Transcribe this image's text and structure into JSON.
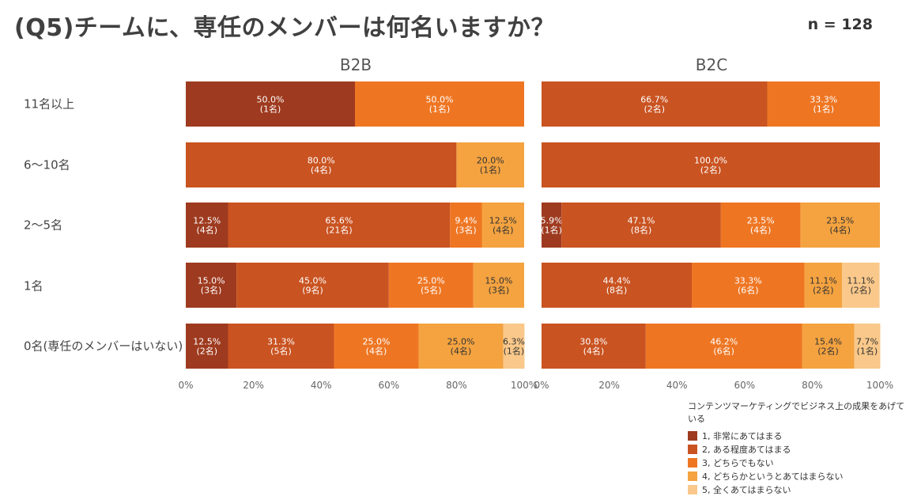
{
  "title": "(Q5)チームに、専任のメンバーは何名いますか？",
  "sample_size": "n = 128",
  "chart_data": {
    "type": "bar",
    "orientation": "horizontal-stacked-100",
    "categories": [
      "11名以上",
      "6～10名",
      "2～5名",
      "1名",
      "0名(専任のメンバーはいない)"
    ],
    "axis_ticks": [
      "0%",
      "20%",
      "40%",
      "60%",
      "80%",
      "100%"
    ],
    "xlim": [
      0,
      100
    ],
    "legend_title": "コンテンツマーケティングでビジネス上の成果をあげている",
    "legend": [
      {
        "label": "1, 非常にあてはまる",
        "color": "#9E3A1F"
      },
      {
        "label": "2, ある程度あてはまる",
        "color": "#C95321"
      },
      {
        "label": "3, どちらでもない",
        "color": "#EE7623"
      },
      {
        "label": "4, どちらかというとあてはまらない",
        "color": "#F4A340"
      },
      {
        "label": "5, 全くあてはまらない",
        "color": "#F9C88A"
      }
    ],
    "panels": [
      {
        "title": "B2B",
        "rows": [
          [
            {
              "level": 1,
              "pct": 50.0,
              "pct_label": "50.0%",
              "count_label": "(1名)"
            },
            {
              "level": 3,
              "pct": 50.0,
              "pct_label": "50.0%",
              "count_label": "(1名)"
            }
          ],
          [
            {
              "level": 2,
              "pct": 80.0,
              "pct_label": "80.0%",
              "count_label": "(4名)"
            },
            {
              "level": 4,
              "pct": 20.0,
              "pct_label": "20.0%",
              "count_label": "(1名)"
            }
          ],
          [
            {
              "level": 1,
              "pct": 12.5,
              "pct_label": "12.5%",
              "count_label": "(4名)"
            },
            {
              "level": 2,
              "pct": 65.6,
              "pct_label": "65.6%",
              "count_label": "(21名)"
            },
            {
              "level": 3,
              "pct": 9.4,
              "pct_label": "9.4%",
              "count_label": "(3名)"
            },
            {
              "level": 4,
              "pct": 12.5,
              "pct_label": "12.5%",
              "count_label": "(4名)"
            }
          ],
          [
            {
              "level": 1,
              "pct": 15.0,
              "pct_label": "15.0%",
              "count_label": "(3名)"
            },
            {
              "level": 2,
              "pct": 45.0,
              "pct_label": "45.0%",
              "count_label": "(9名)"
            },
            {
              "level": 3,
              "pct": 25.0,
              "pct_label": "25.0%",
              "count_label": "(5名)"
            },
            {
              "level": 4,
              "pct": 15.0,
              "pct_label": "15.0%",
              "count_label": "(3名)"
            }
          ],
          [
            {
              "level": 1,
              "pct": 12.5,
              "pct_label": "12.5%",
              "count_label": "(2名)"
            },
            {
              "level": 2,
              "pct": 31.3,
              "pct_label": "31.3%",
              "count_label": "(5名)"
            },
            {
              "level": 3,
              "pct": 25.0,
              "pct_label": "25.0%",
              "count_label": "(4名)"
            },
            {
              "level": 4,
              "pct": 25.0,
              "pct_label": "25.0%",
              "count_label": "(4名)"
            },
            {
              "level": 5,
              "pct": 6.3,
              "pct_label": "6.3%",
              "count_label": "(1名)"
            }
          ]
        ]
      },
      {
        "title": "B2C",
        "rows": [
          [
            {
              "level": 2,
              "pct": 66.7,
              "pct_label": "66.7%",
              "count_label": "(2名)"
            },
            {
              "level": 3,
              "pct": 33.3,
              "pct_label": "33.3%",
              "count_label": "(1名)"
            }
          ],
          [
            {
              "level": 2,
              "pct": 100.0,
              "pct_label": "100.0%",
              "count_label": "(2名)"
            }
          ],
          [
            {
              "level": 1,
              "pct": 5.9,
              "pct_label": "5.9%",
              "count_label": "(1名)"
            },
            {
              "level": 2,
              "pct": 47.1,
              "pct_label": "47.1%",
              "count_label": "(8名)"
            },
            {
              "level": 3,
              "pct": 23.5,
              "pct_label": "23.5%",
              "count_label": "(4名)"
            },
            {
              "level": 4,
              "pct": 23.5,
              "pct_label": "23.5%",
              "count_label": "(4名)"
            }
          ],
          [
            {
              "level": 2,
              "pct": 44.4,
              "pct_label": "44.4%",
              "count_label": "(8名)"
            },
            {
              "level": 3,
              "pct": 33.3,
              "pct_label": "33.3%",
              "count_label": "(6名)"
            },
            {
              "level": 4,
              "pct": 11.1,
              "pct_label": "11.1%",
              "count_label": "(2名)"
            },
            {
              "level": 5,
              "pct": 11.1,
              "pct_label": "11.1%",
              "count_label": "(2名)"
            }
          ],
          [
            {
              "level": 2,
              "pct": 30.8,
              "pct_label": "30.8%",
              "count_label": "(4名)"
            },
            {
              "level": 3,
              "pct": 46.2,
              "pct_label": "46.2%",
              "count_label": "(6名)"
            },
            {
              "level": 4,
              "pct": 15.4,
              "pct_label": "15.4%",
              "count_label": "(2名)"
            },
            {
              "level": 5,
              "pct": 7.7,
              "pct_label": "7.7%",
              "count_label": "(1名)"
            }
          ]
        ]
      }
    ]
  }
}
